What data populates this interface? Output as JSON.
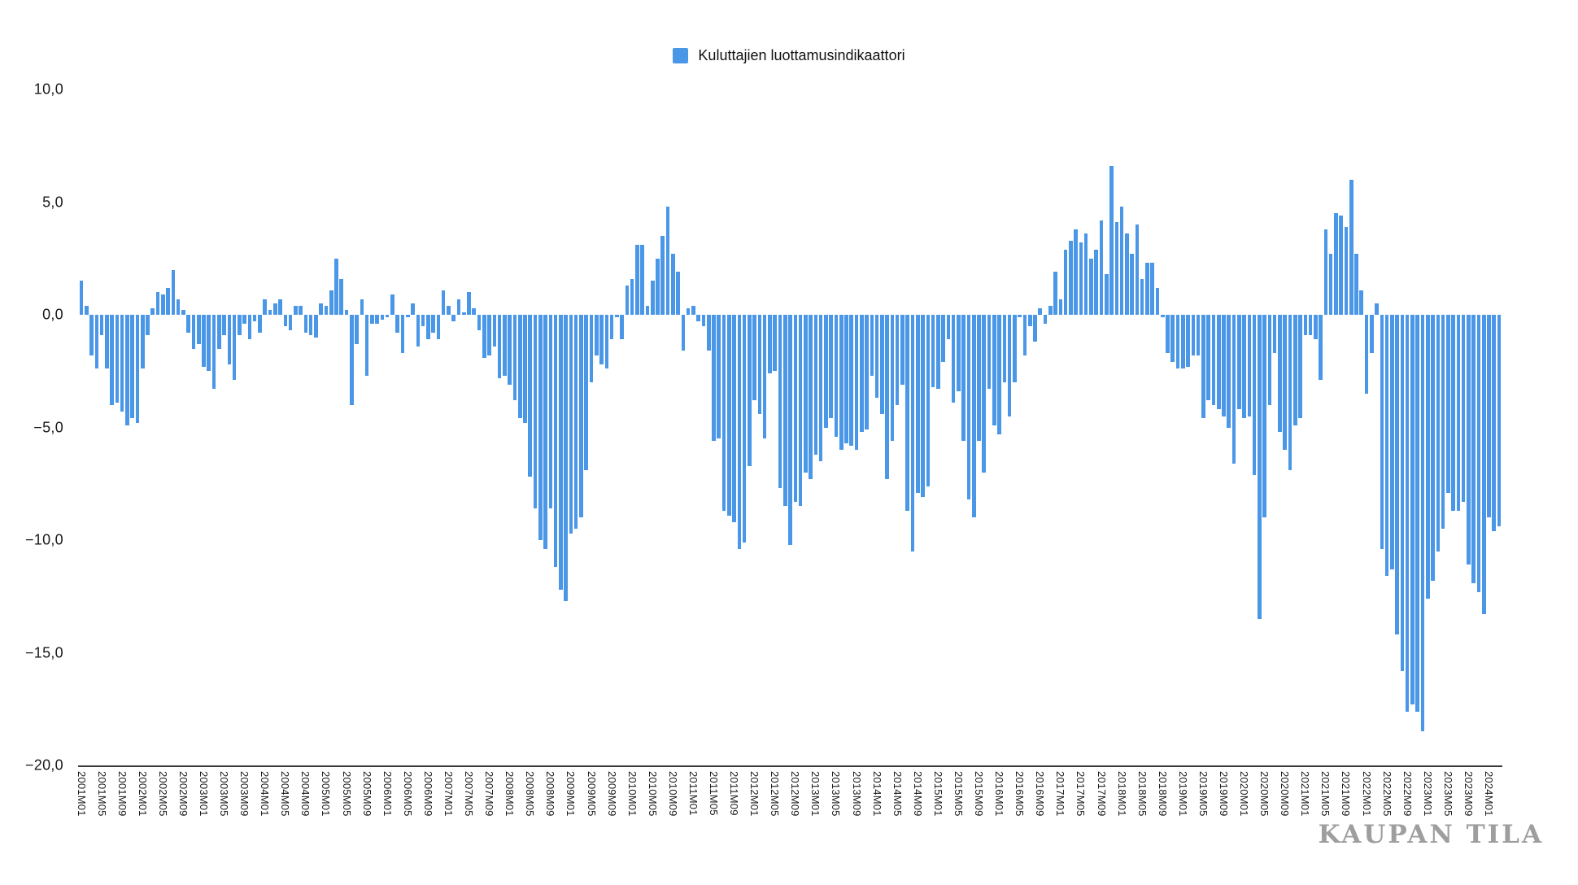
{
  "legend": {
    "label": "Kuluttajien luottamusindikaattori",
    "color": "#4a97e8"
  },
  "watermark": "KAUPAN TILA",
  "chart_data": {
    "type": "bar",
    "title": "",
    "xlabel": "",
    "ylabel": "",
    "series_name": "Kuluttajien luottamusindikaattori",
    "bar_color": "#4a97e8",
    "grid": false,
    "legend_position": "top-center",
    "ylim": [
      -20,
      10
    ],
    "start_month": "2001M01",
    "end_month": "2024M03",
    "y_ticks": [
      {
        "label": "10,0",
        "value": 10
      },
      {
        "label": "5,0",
        "value": 5
      },
      {
        "label": "0,0",
        "value": 0
      },
      {
        "label": "−5,0",
        "value": -5
      },
      {
        "label": "−10,0",
        "value": -10
      },
      {
        "label": "−15,0",
        "value": -15
      },
      {
        "label": "−20,0",
        "value": -20
      }
    ],
    "x_tick_every_n_months": 4,
    "x_tick_labels": [
      "2001M01",
      "2001M05",
      "2001M09",
      "2002M01",
      "2002M05",
      "2002M09",
      "2003M01",
      "2003M05",
      "2003M09",
      "2004M01",
      "2004M05",
      "2004M09",
      "2005M01",
      "2005M05",
      "2005M09",
      "2006M01",
      "2006M05",
      "2006M09",
      "2007M01",
      "2007M05",
      "2007M09",
      "2008M01",
      "2008M05",
      "2008M09",
      "2009M01",
      "2009M05",
      "2009M09",
      "2010M01",
      "2010M05",
      "2010M09",
      "2011M01",
      "2011M05",
      "2011M09",
      "2012M01",
      "2012M05",
      "2012M09",
      "2013M01",
      "2013M05",
      "2013M09",
      "2014M01",
      "2014M05",
      "2014M09",
      "2015M01",
      "2015M05",
      "2015M09",
      "2016M01",
      "2016M05",
      "2016M09",
      "2017M01",
      "2017M05",
      "2017M09",
      "2018M01",
      "2018M05",
      "2018M09",
      "2019M01",
      "2019M05",
      "2019M09",
      "2020M01",
      "2020M05",
      "2020M09",
      "2021M01",
      "2021M05",
      "2021M09",
      "2022M01",
      "2022M05",
      "2022M09",
      "2023M01",
      "2023M05",
      "2023M09",
      "2024M01"
    ],
    "values": [
      1.5,
      0.4,
      -1.8,
      -2.4,
      -0.9,
      -2.4,
      -4.0,
      -3.9,
      -4.3,
      -4.9,
      -4.6,
      -4.8,
      -2.4,
      -0.9,
      0.3,
      1.0,
      0.9,
      1.2,
      2.0,
      0.7,
      0.2,
      -0.8,
      -1.5,
      -1.3,
      -2.3,
      -2.5,
      -3.3,
      -1.5,
      -0.9,
      -2.2,
      -2.9,
      -0.9,
      -0.4,
      -1.1,
      -0.3,
      -0.8,
      0.7,
      0.2,
      0.5,
      0.7,
      -0.5,
      -0.7,
      0.4,
      0.4,
      -0.8,
      -0.9,
      -1.0,
      0.5,
      0.4,
      1.1,
      2.5,
      1.6,
      0.2,
      -4.0,
      -1.3,
      0.7,
      -2.7,
      -0.4,
      -0.4,
      -0.2,
      -0.1,
      0.9,
      -0.8,
      -1.7,
      -0.1,
      0.5,
      -1.4,
      -0.5,
      -1.1,
      -0.8,
      -1.1,
      1.1,
      0.4,
      -0.3,
      0.7,
      0.1,
      1.0,
      0.3,
      -0.7,
      -1.9,
      -1.8,
      -1.4,
      -2.8,
      -2.7,
      -3.1,
      -3.8,
      -4.6,
      -4.8,
      -7.2,
      -8.6,
      -10.0,
      -10.4,
      -8.6,
      -11.2,
      -12.2,
      -12.7,
      -9.7,
      -9.5,
      -9.0,
      -6.9,
      -3.0,
      -1.8,
      -2.2,
      -2.4,
      -1.1,
      -0.1,
      -1.1,
      1.3,
      1.6,
      3.1,
      3.1,
      0.4,
      1.5,
      2.5,
      3.5,
      4.8,
      2.7,
      1.9,
      -1.6,
      0.3,
      0.4,
      -0.3,
      -0.5,
      -1.6,
      -5.6,
      -5.5,
      -8.7,
      -8.9,
      -9.2,
      -10.4,
      -10.1,
      -6.7,
      -3.8,
      -4.4,
      -5.5,
      -2.6,
      -2.5,
      -7.7,
      -8.5,
      -10.2,
      -8.3,
      -8.5,
      -7.0,
      -7.3,
      -6.2,
      -6.5,
      -5.0,
      -4.6,
      -5.4,
      -6.0,
      -5.7,
      -5.8,
      -6.0,
      -5.2,
      -5.1,
      -2.7,
      -3.7,
      -4.4,
      -7.3,
      -5.6,
      -4.0,
      -3.1,
      -8.7,
      -10.5,
      -7.9,
      -8.1,
      -7.6,
      -3.2,
      -3.3,
      -2.1,
      -1.1,
      -3.9,
      -3.4,
      -5.6,
      -8.2,
      -9.0,
      -5.6,
      -7.0,
      -3.3,
      -4.9,
      -5.3,
      -3.0,
      -4.5,
      -3.0,
      -0.1,
      -1.8,
      -0.5,
      -1.2,
      0.3,
      -0.4,
      0.4,
      1.9,
      0.7,
      2.9,
      3.3,
      3.8,
      3.2,
      3.6,
      2.5,
      2.9,
      4.2,
      1.8,
      6.6,
      4.1,
      4.8,
      3.6,
      2.7,
      4.0,
      1.6,
      2.3,
      2.3,
      1.2,
      -0.1,
      -1.7,
      -2.1,
      -2.4,
      -2.4,
      -2.3,
      -1.8,
      -1.8,
      -4.6,
      -3.8,
      -4.0,
      -4.2,
      -4.5,
      -5.0,
      -6.6,
      -4.2,
      -4.6,
      -4.5,
      -7.1,
      -13.5,
      -9.0,
      -4.0,
      -1.7,
      -5.2,
      -6.0,
      -6.9,
      -4.9,
      -4.6,
      -0.9,
      -0.9,
      -1.1,
      -2.9,
      3.8,
      2.7,
      4.5,
      4.4,
      3.9,
      6.0,
      2.7,
      1.1,
      -3.5,
      -1.7,
      0.5,
      -10.4,
      -11.6,
      -11.3,
      -14.2,
      -15.8,
      -17.6,
      -17.3,
      -17.6,
      -18.5,
      -12.6,
      -11.8,
      -10.5,
      -9.5,
      -7.9,
      -8.7,
      -8.7,
      -8.3,
      -11.1,
      -11.9,
      -12.3,
      -13.3,
      -9.0,
      -9.6,
      -9.4
    ]
  }
}
